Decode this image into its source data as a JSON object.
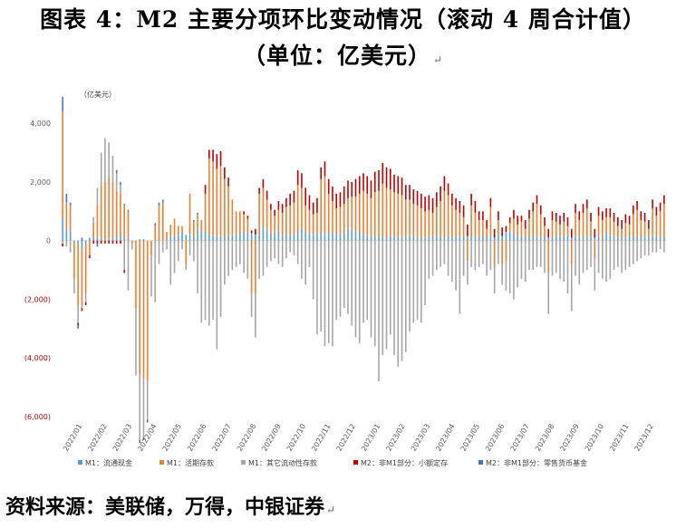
{
  "title_line1": "图表 4：M2 主要分项环比变动情况（滚动 4 周合计值）",
  "title_line2": "（单位：亿美元）",
  "source": "资料来源：美联储，万得，中银证券",
  "chart_data": {
    "type": "bar",
    "stacked": true,
    "unit_label": "（亿美元）",
    "ylim": [
      -6000,
      4500
    ],
    "yticks": [
      4000,
      2000,
      0,
      -2000,
      -4000,
      -6000
    ],
    "ytick_labels": [
      "4,000",
      "2,000",
      "0",
      "(2,000)",
      "(4,000)",
      "(6,000)"
    ],
    "negative_tick_color": "#c00000",
    "x_labels": [
      "2022/01",
      "2022/02",
      "2022/03",
      "2022/04",
      "2022/05",
      "2022/06",
      "2022/07",
      "2022/08",
      "2022/09",
      "2022/10",
      "2022/11",
      "2022/12",
      "2023/01",
      "2023/02",
      "2023/03",
      "2023/04",
      "2023/05",
      "2023/06",
      "2023/07",
      "2023/08",
      "2023/09",
      "2023/10",
      "2023/11",
      "2023/12"
    ],
    "series": [
      {
        "name": "M1：流通现金",
        "color": "#5b9bd5",
        "values": [
          800,
          400,
          300,
          0,
          -100,
          -300,
          -100,
          100,
          100,
          100,
          100,
          0,
          50,
          100,
          100,
          200,
          100,
          100,
          0,
          0,
          50,
          50,
          0,
          0,
          0,
          0,
          0,
          0,
          150,
          150,
          200,
          300,
          200,
          200,
          150,
          400,
          300,
          300,
          200,
          200,
          150,
          150,
          100,
          150,
          200,
          200,
          300,
          300,
          250,
          250,
          200,
          200,
          500,
          400,
          250,
          250,
          350,
          150,
          250,
          200,
          200,
          300,
          400,
          300,
          250,
          200,
          250,
          300,
          200,
          300,
          250,
          200,
          250,
          250,
          450,
          400,
          300,
          300,
          200,
          200,
          150,
          150,
          100,
          150,
          100,
          150,
          150,
          100,
          150,
          100,
          200,
          150,
          100,
          100,
          100,
          150,
          150,
          150,
          150,
          100,
          150,
          100,
          150,
          150,
          100,
          150,
          100,
          150,
          100,
          200,
          100,
          150,
          100,
          200,
          150,
          300,
          300,
          250,
          150,
          150,
          100,
          150,
          100,
          150,
          100,
          100,
          100,
          100,
          150,
          150,
          150,
          200,
          100,
          150,
          100,
          150,
          100,
          150,
          100,
          150,
          100,
          300,
          200,
          150,
          100,
          100,
          100,
          150,
          100,
          150,
          100,
          150,
          100,
          200,
          150,
          100,
          150
        ]
      },
      {
        "name": "M1：活期存款",
        "color": "#ed7d31",
        "values": [
          3600,
          900,
          900,
          -1300,
          -2100,
          -1900,
          -1700,
          -500,
          500,
          1100,
          1800,
          2000,
          2100,
          1900,
          1600,
          1400,
          1100,
          900,
          -100,
          -2300,
          -4600,
          -4700,
          -4800,
          -500,
          500,
          1200,
          1300,
          300,
          400,
          600,
          300,
          200,
          -800,
          1400,
          500,
          500,
          400,
          1300,
          2600,
          2500,
          2300,
          2400,
          2000,
          1700,
          1200,
          800,
          700,
          600,
          500,
          -1800,
          -1800,
          1400,
          1300,
          1000,
          800,
          600,
          700,
          800,
          900,
          1000,
          1100,
          1600,
          1400,
          900,
          800,
          700,
          700,
          1800,
          2000,
          1300,
          1100,
          900,
          900,
          1000,
          1000,
          1100,
          1200,
          1300,
          1500,
          1400,
          1300,
          1500,
          1600,
          1800,
          1700,
          1600,
          1500,
          1500,
          1400,
          1300,
          1200,
          1100,
          1100,
          1000,
          900,
          900,
          800,
          1000,
          1200,
          1600,
          1400,
          1100,
          900,
          800,
          700,
          -700,
          1100,
          800,
          600,
          500,
          300,
          1000,
          -900,
          500,
          -800,
          -700,
          300,
          500,
          400,
          500,
          300,
          600,
          900,
          1100,
          800,
          400,
          -1100,
          600,
          500,
          400,
          500,
          300,
          -800,
          800,
          600,
          800,
          1000,
          500,
          -600,
          700,
          600,
          500,
          600,
          500,
          400,
          300,
          500,
          400,
          800,
          900,
          600,
          500,
          300,
          900,
          700,
          900,
          1100,
          1200,
          1300
        ]
      },
      {
        "name": "M1：其它流动性存款",
        "color": "#a5a5a5",
        "values": [
          -100,
          -200,
          -400,
          -500,
          -600,
          -100,
          -300,
          0,
          200,
          600,
          1100,
          1500,
          1200,
          900,
          600,
          300,
          -1000,
          -1700,
          -200,
          -2300,
          -2200,
          -2000,
          -1300,
          -1400,
          -2100,
          -800,
          -400,
          -300,
          -1500,
          -1100,
          -700,
          -300,
          -200,
          -500,
          -700,
          -1800,
          -2800,
          -2700,
          -2900,
          -2700,
          -3700,
          -2600,
          -1500,
          -1200,
          -1000,
          -900,
          -800,
          -1100,
          -1300,
          -800,
          -1500,
          -1300,
          -1200,
          -900,
          -700,
          -600,
          -800,
          -900,
          -600,
          -400,
          -500,
          -800,
          -1300,
          -1500,
          -900,
          -2000,
          -3200,
          -3100,
          -3600,
          -3500,
          -3600,
          -2700,
          -2600,
          -2300,
          -2500,
          -2900,
          -3300,
          -3500,
          -2800,
          -2700,
          -3300,
          -3600,
          -4800,
          -3900,
          -3700,
          -3200,
          -3900,
          -4300,
          -4100,
          -3800,
          -3100,
          -2800,
          -2700,
          -2800,
          -2200,
          -1300,
          -1200,
          -1000,
          -900,
          -800,
          -1200,
          -1400,
          -1700,
          -2500,
          -1200,
          -800,
          -900,
          -1000,
          -900,
          -800,
          -1200,
          -1000,
          -900,
          -800,
          -700,
          -1000,
          -1800,
          -2000,
          -1600,
          -1300,
          -1400,
          -1000,
          -1000,
          -900,
          -900,
          -1100,
          -1400,
          -1200,
          -1100,
          -1300,
          -1400,
          -1800,
          -1600,
          -1200,
          -1500,
          -1100,
          -1000,
          -900,
          -1100,
          -1100,
          -1300,
          -1400,
          -1300,
          -1000,
          -900,
          -1100,
          -1000,
          -900,
          -800,
          -700,
          -600,
          -500,
          -500,
          -400,
          -400,
          -300,
          -400,
          -500
        ]
      },
      {
        "name": "M2：非M1部分：小额定存",
        "color": "#c00000",
        "values": [
          -100,
          0,
          0,
          0,
          -100,
          -100,
          -100,
          -100,
          -100,
          -100,
          -100,
          -100,
          -100,
          -100,
          -100,
          -100,
          -100,
          0,
          0,
          0,
          0,
          0,
          0,
          0,
          0,
          0,
          0,
          0,
          0,
          0,
          0,
          0,
          0,
          0,
          0,
          0,
          0,
          300,
          300,
          400,
          500,
          500,
          400,
          300,
          0,
          0,
          0,
          100,
          100,
          100,
          200,
          200,
          300,
          300,
          200,
          200,
          300,
          300,
          300,
          400,
          400,
          500,
          500,
          600,
          500,
          400,
          500,
          400,
          500,
          500,
          500,
          500,
          500,
          600,
          600,
          500,
          600,
          600,
          600,
          600,
          600,
          700,
          700,
          700,
          700,
          700,
          600,
          600,
          600,
          500,
          500,
          500,
          500,
          500,
          500,
          500,
          500,
          500,
          500,
          500,
          400,
          400,
          400,
          400,
          400,
          400,
          400,
          400,
          300,
          300,
          300,
          300,
          300,
          300,
          300,
          200,
          200,
          300,
          300,
          200,
          300,
          300,
          300,
          300,
          300,
          300,
          300,
          300,
          300,
          300,
          300,
          300,
          300,
          300,
          300,
          300,
          300,
          300,
          300,
          300,
          300,
          300,
          300,
          300,
          300,
          300,
          300,
          300,
          300,
          300,
          300,
          300,
          300,
          300,
          300,
          300,
          300,
          300,
          300
        ]
      },
      {
        "name": "M2：非M1部分：零售货币基金",
        "color": "#4472c4",
        "values": [
          500,
          300,
          100,
          0,
          -100,
          100,
          0,
          0,
          0,
          -100,
          0,
          0,
          0,
          0,
          100,
          100,
          50,
          50,
          0,
          0,
          -100,
          -100,
          -100,
          0,
          100,
          100,
          100,
          0,
          0,
          0,
          0,
          0,
          0,
          0,
          50,
          50,
          0,
          0,
          0,
          0,
          0,
          0,
          0,
          0,
          0,
          0,
          0,
          0,
          0,
          0,
          0,
          0,
          0,
          0,
          0,
          0,
          0,
          0,
          0,
          0,
          0,
          0,
          0,
          0,
          0,
          0,
          0,
          0,
          0,
          0,
          0,
          0,
          0,
          0,
          0,
          0,
          0,
          0,
          0,
          0,
          0,
          0,
          0,
          0,
          0,
          0,
          0,
          0,
          0,
          0,
          0,
          0,
          0,
          0,
          0,
          0,
          0,
          0,
          0,
          0,
          0,
          0,
          0,
          0,
          0,
          0,
          0,
          0,
          0,
          0,
          0,
          0,
          0,
          0,
          0,
          0,
          0,
          0,
          0,
          0,
          0,
          0,
          0,
          0,
          0,
          0,
          0,
          0,
          0,
          0,
          0,
          0,
          0,
          0,
          0,
          0,
          0,
          0,
          0,
          0,
          0,
          0,
          0,
          0,
          0,
          0,
          0,
          0,
          0,
          0,
          0,
          0,
          0,
          0,
          0,
          0,
          0,
          0,
          0,
          0,
          0,
          0,
          0,
          0
        ]
      }
    ]
  }
}
